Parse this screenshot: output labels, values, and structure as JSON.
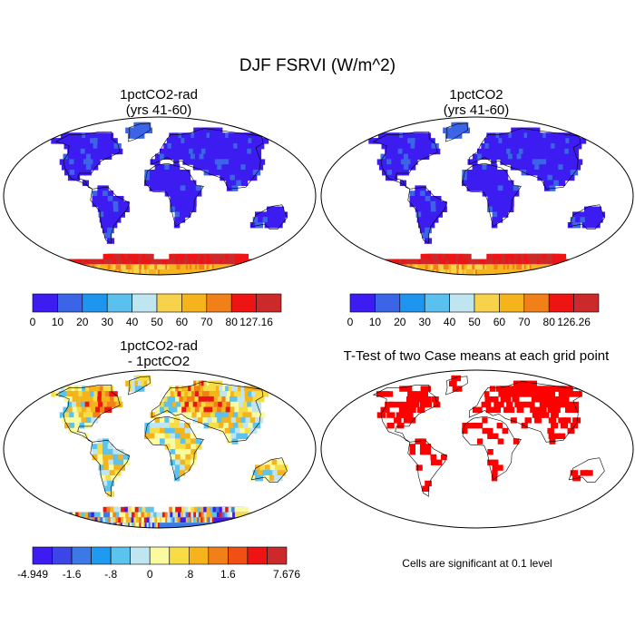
{
  "main_title": "DJF FSRVI (W/m^2)",
  "panels": [
    {
      "title_line1": "1pctCO2-rad",
      "title_line2": "(yrs 41-60)"
    },
    {
      "title_line1": "1pctCO2",
      "title_line2": "(yrs 41-60)"
    },
    {
      "title_line1": "1pctCO2-rad",
      "title_line2": "- 1pctCO2"
    },
    {
      "title_line1": "T-Test of two Case means at each grid point",
      "title_line2": ""
    }
  ],
  "note": "Cells are significant at 0.1 level",
  "chart_data": [
    {
      "type": "heatmap",
      "title": "1pctCO2-rad (yrs 41-60)",
      "colorbar": {
        "colors": [
          "#3c1cf0",
          "#3c64e6",
          "#1e96f0",
          "#5ac0ee",
          "#bfe6f0",
          "#f6d34a",
          "#f5b31c",
          "#f28018",
          "#ee1414",
          "#cc2a2a"
        ],
        "tick_labels": [
          "0",
          "10",
          "20",
          "30",
          "40",
          "50",
          "60",
          "70",
          "80",
          "127.16"
        ],
        "min": 0,
        "max": 127.16
      }
    },
    {
      "type": "heatmap",
      "title": "1pctCO2 (yrs 41-60)",
      "colorbar": {
        "colors": [
          "#3c1cf0",
          "#3c64e6",
          "#1e96f0",
          "#5ac0ee",
          "#bfe6f0",
          "#f6d34a",
          "#f5b31c",
          "#f28018",
          "#ee1414",
          "#cc2a2a"
        ],
        "tick_labels": [
          "0",
          "10",
          "20",
          "30",
          "40",
          "50",
          "60",
          "70",
          "80",
          "126.26"
        ],
        "min": 0,
        "max": 126.26
      }
    },
    {
      "type": "heatmap",
      "title": "1pctCO2-rad - 1pctCO2",
      "colorbar": {
        "colors": [
          "#3c1cf0",
          "#3c46e6",
          "#3c78e6",
          "#1e9bf0",
          "#5ac3ee",
          "#bfe6f0",
          "#fafaa0",
          "#f8dc46",
          "#f5b31c",
          "#f28018",
          "#f05014",
          "#ee1414",
          "#cc2a2a"
        ],
        "tick_labels": [
          "-4.949",
          "-1.6",
          "-.8",
          "0",
          ".8",
          "1.6",
          "7.676"
        ],
        "min": -4.949,
        "max": 7.676
      }
    },
    {
      "type": "heatmap",
      "title": "T-Test of two Case means at each grid point",
      "significance_color": "#ff0000",
      "note": "Cells are significant at 0.1 level"
    }
  ]
}
